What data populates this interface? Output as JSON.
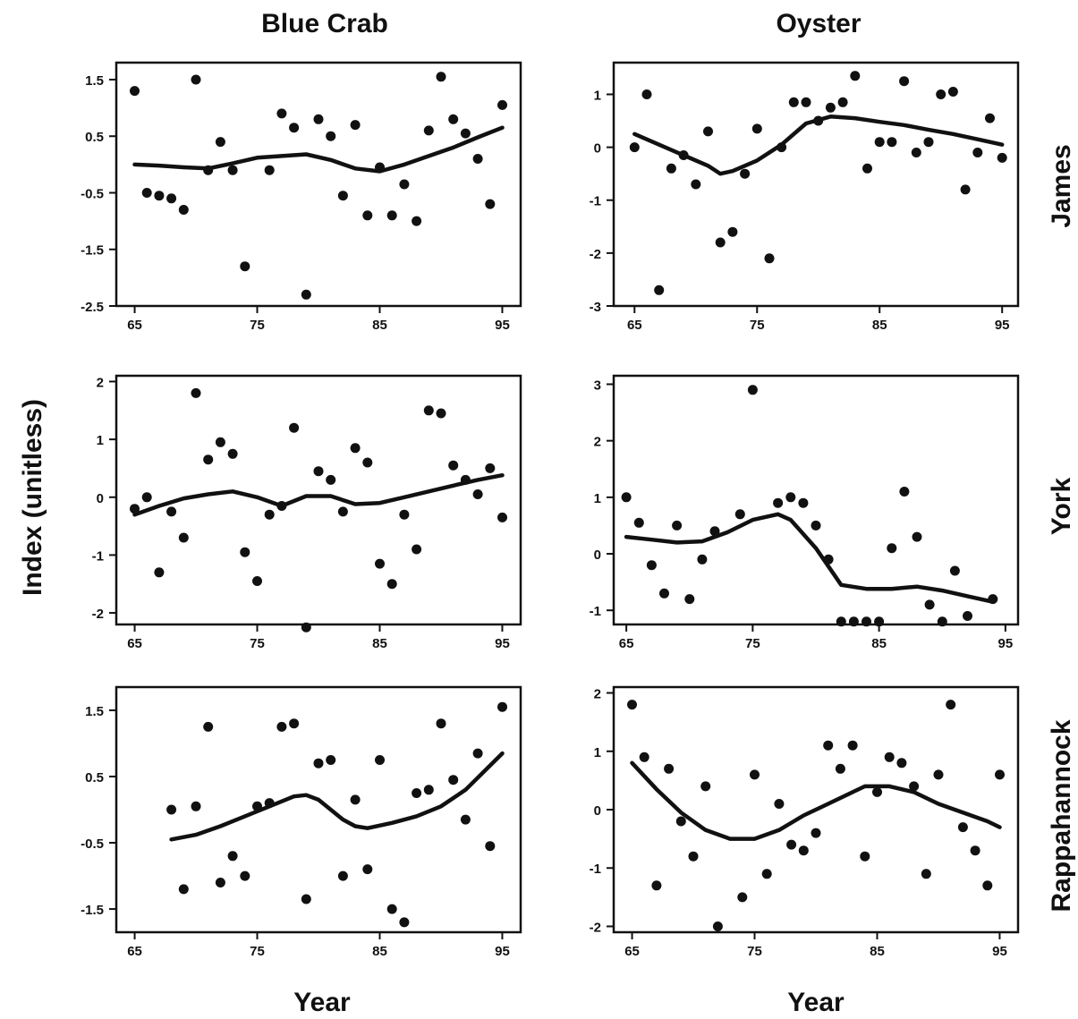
{
  "figure": {
    "column_titles": [
      "Blue Crab",
      "Oyster"
    ],
    "row_labels": [
      "James",
      "York",
      "Rappahannock"
    ],
    "ylabel": "Index (unitless)",
    "xlabel_left": "Year",
    "xlabel_right": "Year"
  },
  "chart_data": [
    {
      "type": "scatter",
      "species": "Blue Crab",
      "river": "James",
      "xlim": [
        63.5,
        96.5
      ],
      "ylim": [
        -2.5,
        1.8
      ],
      "xticks": [
        "65",
        "75",
        "85",
        "95"
      ],
      "xtick_values": [
        65,
        75,
        85,
        95
      ],
      "yticks": [
        "1.5",
        "0.5",
        "-0.5",
        "-1.5",
        "-2.5"
      ],
      "ytick_values": [
        1.5,
        0.5,
        -0.5,
        -1.5,
        -2.5
      ],
      "points": [
        [
          65,
          1.3
        ],
        [
          66,
          -0.5
        ],
        [
          67,
          -0.55
        ],
        [
          68,
          -0.6
        ],
        [
          69,
          -0.8
        ],
        [
          70,
          1.5
        ],
        [
          71,
          -0.1
        ],
        [
          72,
          0.4
        ],
        [
          73,
          -0.1
        ],
        [
          74,
          -1.8
        ],
        [
          75,
          null
        ],
        [
          76,
          -0.1
        ],
        [
          77,
          0.9
        ],
        [
          78,
          0.65
        ],
        [
          79,
          -2.3
        ],
        [
          80,
          0.8
        ],
        [
          81,
          0.5
        ],
        [
          82,
          -0.55
        ],
        [
          83,
          0.7
        ],
        [
          84,
          -0.9
        ],
        [
          85,
          -0.05
        ],
        [
          86,
          -0.9
        ],
        [
          87,
          -0.35
        ],
        [
          88,
          -1.0
        ],
        [
          89,
          0.6
        ],
        [
          90,
          1.55
        ],
        [
          91,
          0.8
        ],
        [
          92,
          0.55
        ],
        [
          93,
          0.1
        ],
        [
          94,
          -0.7
        ],
        [
          95,
          1.05
        ]
      ],
      "smooth": [
        [
          65,
          0.0
        ],
        [
          67,
          -0.02
        ],
        [
          69,
          -0.05
        ],
        [
          71,
          -0.07
        ],
        [
          73,
          0.02
        ],
        [
          75,
          0.12
        ],
        [
          77,
          0.15
        ],
        [
          79,
          0.18
        ],
        [
          81,
          0.08
        ],
        [
          83,
          -0.07
        ],
        [
          85,
          -0.12
        ],
        [
          87,
          0.0
        ],
        [
          89,
          0.15
        ],
        [
          91,
          0.3
        ],
        [
          93,
          0.48
        ],
        [
          95,
          0.65
        ]
      ]
    },
    {
      "type": "scatter",
      "species": "Oyster",
      "river": "James",
      "xlim": [
        63.3,
        96.3
      ],
      "ylim": [
        -3,
        1.6
      ],
      "xticks": [
        "65",
        "75",
        "85",
        "95"
      ],
      "xtick_values": [
        65,
        75,
        85,
        95
      ],
      "yticks": [
        "1",
        "0",
        "-1",
        "-2",
        "-3"
      ],
      "ytick_values": [
        1,
        0,
        -1,
        -2,
        -3
      ],
      "points": [
        [
          65,
          0.0
        ],
        [
          66,
          1.0
        ],
        [
          67,
          -2.7
        ],
        [
          68,
          -0.4
        ],
        [
          69,
          -0.15
        ],
        [
          70,
          -0.7
        ],
        [
          71,
          0.3
        ],
        [
          72,
          -1.8
        ],
        [
          73,
          -1.6
        ],
        [
          74,
          -0.5
        ],
        [
          75,
          0.35
        ],
        [
          76,
          -2.1
        ],
        [
          77,
          0.0
        ],
        [
          78,
          0.85
        ],
        [
          79,
          0.85
        ],
        [
          80,
          0.5
        ],
        [
          81,
          0.75
        ],
        [
          82,
          0.85
        ],
        [
          83,
          1.35
        ],
        [
          84,
          -0.4
        ],
        [
          85,
          0.1
        ],
        [
          86,
          0.1
        ],
        [
          87,
          1.25
        ],
        [
          88,
          -0.1
        ],
        [
          89,
          0.1
        ],
        [
          90,
          1.0
        ],
        [
          91,
          1.05
        ],
        [
          92,
          -0.8
        ],
        [
          93,
          -0.1
        ],
        [
          94,
          0.55
        ],
        [
          95,
          -0.2
        ]
      ],
      "smooth": [
        [
          65,
          0.25
        ],
        [
          67,
          0.05
        ],
        [
          69,
          -0.15
        ],
        [
          71,
          -0.35
        ],
        [
          72,
          -0.5
        ],
        [
          73,
          -0.45
        ],
        [
          75,
          -0.25
        ],
        [
          77,
          0.05
        ],
        [
          79,
          0.45
        ],
        [
          81,
          0.58
        ],
        [
          83,
          0.55
        ],
        [
          85,
          0.48
        ],
        [
          87,
          0.42
        ],
        [
          89,
          0.33
        ],
        [
          91,
          0.25
        ],
        [
          93,
          0.15
        ],
        [
          95,
          0.05
        ]
      ]
    },
    {
      "type": "scatter",
      "species": "Blue Crab",
      "river": "York",
      "xlim": [
        63.5,
        96.5
      ],
      "ylim": [
        -2.2,
        2.1
      ],
      "xticks": [
        "65",
        "75",
        "85",
        "95"
      ],
      "xtick_values": [
        65,
        75,
        85,
        95
      ],
      "yticks": [
        "2",
        "1",
        "0",
        "-1",
        "-2"
      ],
      "ytick_values": [
        2,
        1,
        0,
        -1,
        -2
      ],
      "points": [
        [
          65,
          -0.2
        ],
        [
          66,
          0.0
        ],
        [
          67,
          -1.3
        ],
        [
          68,
          -0.25
        ],
        [
          69,
          -0.7
        ],
        [
          70,
          1.8
        ],
        [
          71,
          0.65
        ],
        [
          72,
          0.95
        ],
        [
          73,
          0.75
        ],
        [
          74,
          -0.95
        ],
        [
          75,
          -1.45
        ],
        [
          76,
          -0.3
        ],
        [
          77,
          -0.15
        ],
        [
          78,
          1.2
        ],
        [
          79,
          -2.25
        ],
        [
          80,
          0.45
        ],
        [
          81,
          0.3
        ],
        [
          82,
          -0.25
        ],
        [
          83,
          0.85
        ],
        [
          84,
          0.6
        ],
        [
          85,
          -1.15
        ],
        [
          86,
          -1.5
        ],
        [
          87,
          -0.3
        ],
        [
          88,
          -0.9
        ],
        [
          89,
          1.5
        ],
        [
          90,
          1.45
        ],
        [
          91,
          0.55
        ],
        [
          92,
          0.3
        ],
        [
          93,
          0.05
        ],
        [
          94,
          0.5
        ],
        [
          95,
          -0.35
        ]
      ],
      "smooth": [
        [
          65,
          -0.3
        ],
        [
          67,
          -0.15
        ],
        [
          69,
          -0.02
        ],
        [
          71,
          0.05
        ],
        [
          73,
          0.1
        ],
        [
          75,
          0.0
        ],
        [
          77,
          -0.15
        ],
        [
          79,
          0.02
        ],
        [
          81,
          0.02
        ],
        [
          83,
          -0.12
        ],
        [
          85,
          -0.1
        ],
        [
          87,
          0.0
        ],
        [
          89,
          0.1
        ],
        [
          91,
          0.2
        ],
        [
          93,
          0.3
        ],
        [
          95,
          0.38
        ]
      ]
    },
    {
      "type": "scatter",
      "species": "Oyster",
      "river": "York",
      "xlim": [
        64.0,
        96.0
      ],
      "ylim": [
        -1.25,
        3.15
      ],
      "xticks": [
        "65",
        "75",
        "85",
        "95"
      ],
      "xtick_values": [
        65,
        75,
        85,
        95
      ],
      "yticks": [
        "3",
        "2",
        "1",
        "0",
        "-1"
      ],
      "ytick_values": [
        3,
        2,
        1,
        0,
        -1
      ],
      "points": [
        [
          65,
          1.0
        ],
        [
          66,
          0.55
        ],
        [
          67,
          -0.2
        ],
        [
          68,
          -0.7
        ],
        [
          69,
          0.5
        ],
        [
          70,
          -0.8
        ],
        [
          71,
          -0.1
        ],
        [
          72,
          0.4
        ],
        [
          73,
          null
        ],
        [
          74,
          0.7
        ],
        [
          75,
          2.9
        ],
        [
          76,
          null
        ],
        [
          77,
          0.9
        ],
        [
          78,
          1.0
        ],
        [
          79,
          0.9
        ],
        [
          80,
          0.5
        ],
        [
          81,
          -0.1
        ],
        [
          82,
          -1.2
        ],
        [
          83,
          -1.2
        ],
        [
          84,
          -1.2
        ],
        [
          85,
          -1.2
        ],
        [
          86,
          0.1
        ],
        [
          87,
          1.1
        ],
        [
          88,
          0.3
        ],
        [
          89,
          -0.9
        ],
        [
          90,
          -1.2
        ],
        [
          91,
          -0.3
        ],
        [
          92,
          -1.1
        ],
        [
          93,
          null
        ],
        [
          94,
          -0.8
        ]
      ],
      "smooth": [
        [
          65,
          0.3
        ],
        [
          67,
          0.25
        ],
        [
          69,
          0.2
        ],
        [
          71,
          0.22
        ],
        [
          73,
          0.38
        ],
        [
          75,
          0.6
        ],
        [
          77,
          0.7
        ],
        [
          78,
          0.6
        ],
        [
          80,
          0.1
        ],
        [
          82,
          -0.55
        ],
        [
          84,
          -0.62
        ],
        [
          86,
          -0.62
        ],
        [
          88,
          -0.58
        ],
        [
          90,
          -0.65
        ],
        [
          92,
          -0.75
        ],
        [
          94,
          -0.85
        ]
      ]
    },
    {
      "type": "scatter",
      "species": "Blue Crab",
      "river": "Rappahannock",
      "xlim": [
        63.5,
        96.5
      ],
      "ylim": [
        -1.85,
        1.85
      ],
      "xticks": [
        "65",
        "75",
        "85",
        "95"
      ],
      "xtick_values": [
        65,
        75,
        85,
        95
      ],
      "yticks": [
        "1.5",
        "0.5",
        "-0.5",
        "-1.5"
      ],
      "ytick_values": [
        1.5,
        0.5,
        -0.5,
        -1.5
      ],
      "points": [
        [
          68,
          0.0
        ],
        [
          69,
          -1.2
        ],
        [
          70,
          0.05
        ],
        [
          71,
          1.25
        ],
        [
          72,
          -1.1
        ],
        [
          73,
          -0.7
        ],
        [
          74,
          -1.0
        ],
        [
          75,
          0.05
        ],
        [
          76,
          0.1
        ],
        [
          77,
          1.25
        ],
        [
          78,
          1.3
        ],
        [
          79,
          -1.35
        ],
        [
          80,
          0.7
        ],
        [
          81,
          0.75
        ],
        [
          82,
          -1.0
        ],
        [
          83,
          0.15
        ],
        [
          84,
          -0.9
        ],
        [
          85,
          0.75
        ],
        [
          86,
          -1.5
        ],
        [
          87,
          -1.7
        ],
        [
          88,
          0.25
        ],
        [
          89,
          0.3
        ],
        [
          90,
          1.3
        ],
        [
          91,
          0.45
        ],
        [
          92,
          -0.15
        ],
        [
          93,
          0.85
        ],
        [
          94,
          -0.55
        ],
        [
          95,
          1.55
        ]
      ],
      "smooth": [
        [
          68,
          -0.45
        ],
        [
          70,
          -0.38
        ],
        [
          72,
          -0.25
        ],
        [
          74,
          -0.1
        ],
        [
          76,
          0.05
        ],
        [
          78,
          0.2
        ],
        [
          79,
          0.22
        ],
        [
          80,
          0.15
        ],
        [
          82,
          -0.15
        ],
        [
          83,
          -0.25
        ],
        [
          84,
          -0.28
        ],
        [
          86,
          -0.2
        ],
        [
          88,
          -0.1
        ],
        [
          90,
          0.05
        ],
        [
          92,
          0.3
        ],
        [
          95,
          0.85
        ]
      ]
    },
    {
      "type": "scatter",
      "species": "Oyster",
      "river": "Rappahannock",
      "xlim": [
        63.5,
        96.5
      ],
      "ylim": [
        -2.1,
        2.1
      ],
      "xticks": [
        "65",
        "75",
        "85",
        "95"
      ],
      "xtick_values": [
        65,
        75,
        85,
        95
      ],
      "yticks": [
        "2",
        "1",
        "0",
        "-1",
        "-2"
      ],
      "ytick_values": [
        2,
        1,
        0,
        -1,
        -2
      ],
      "points": [
        [
          65,
          1.8
        ],
        [
          66,
          0.9
        ],
        [
          67,
          -1.3
        ],
        [
          68,
          0.7
        ],
        [
          69,
          -0.2
        ],
        [
          70,
          -0.8
        ],
        [
          71,
          0.4
        ],
        [
          72,
          -2.0
        ],
        [
          73,
          null
        ],
        [
          74,
          -1.5
        ],
        [
          75,
          0.6
        ],
        [
          76,
          -1.1
        ],
        [
          77,
          0.1
        ],
        [
          78,
          -0.6
        ],
        [
          79,
          -0.7
        ],
        [
          80,
          -0.4
        ],
        [
          81,
          1.1
        ],
        [
          82,
          0.7
        ],
        [
          83,
          1.1
        ],
        [
          84,
          -0.8
        ],
        [
          85,
          0.3
        ],
        [
          86,
          0.9
        ],
        [
          87,
          0.8
        ],
        [
          88,
          0.4
        ],
        [
          89,
          -1.1
        ],
        [
          90,
          0.6
        ],
        [
          91,
          1.8
        ],
        [
          92,
          -0.3
        ],
        [
          93,
          -0.7
        ],
        [
          94,
          -1.3
        ],
        [
          95,
          0.6
        ]
      ],
      "smooth": [
        [
          65,
          0.8
        ],
        [
          67,
          0.35
        ],
        [
          69,
          -0.05
        ],
        [
          71,
          -0.35
        ],
        [
          73,
          -0.5
        ],
        [
          75,
          -0.5
        ],
        [
          77,
          -0.35
        ],
        [
          79,
          -0.1
        ],
        [
          81,
          0.1
        ],
        [
          83,
          0.3
        ],
        [
          84,
          0.4
        ],
        [
          86,
          0.4
        ],
        [
          88,
          0.3
        ],
        [
          90,
          0.1
        ],
        [
          92,
          -0.05
        ],
        [
          94,
          -0.2
        ],
        [
          95,
          -0.3
        ]
      ]
    }
  ]
}
